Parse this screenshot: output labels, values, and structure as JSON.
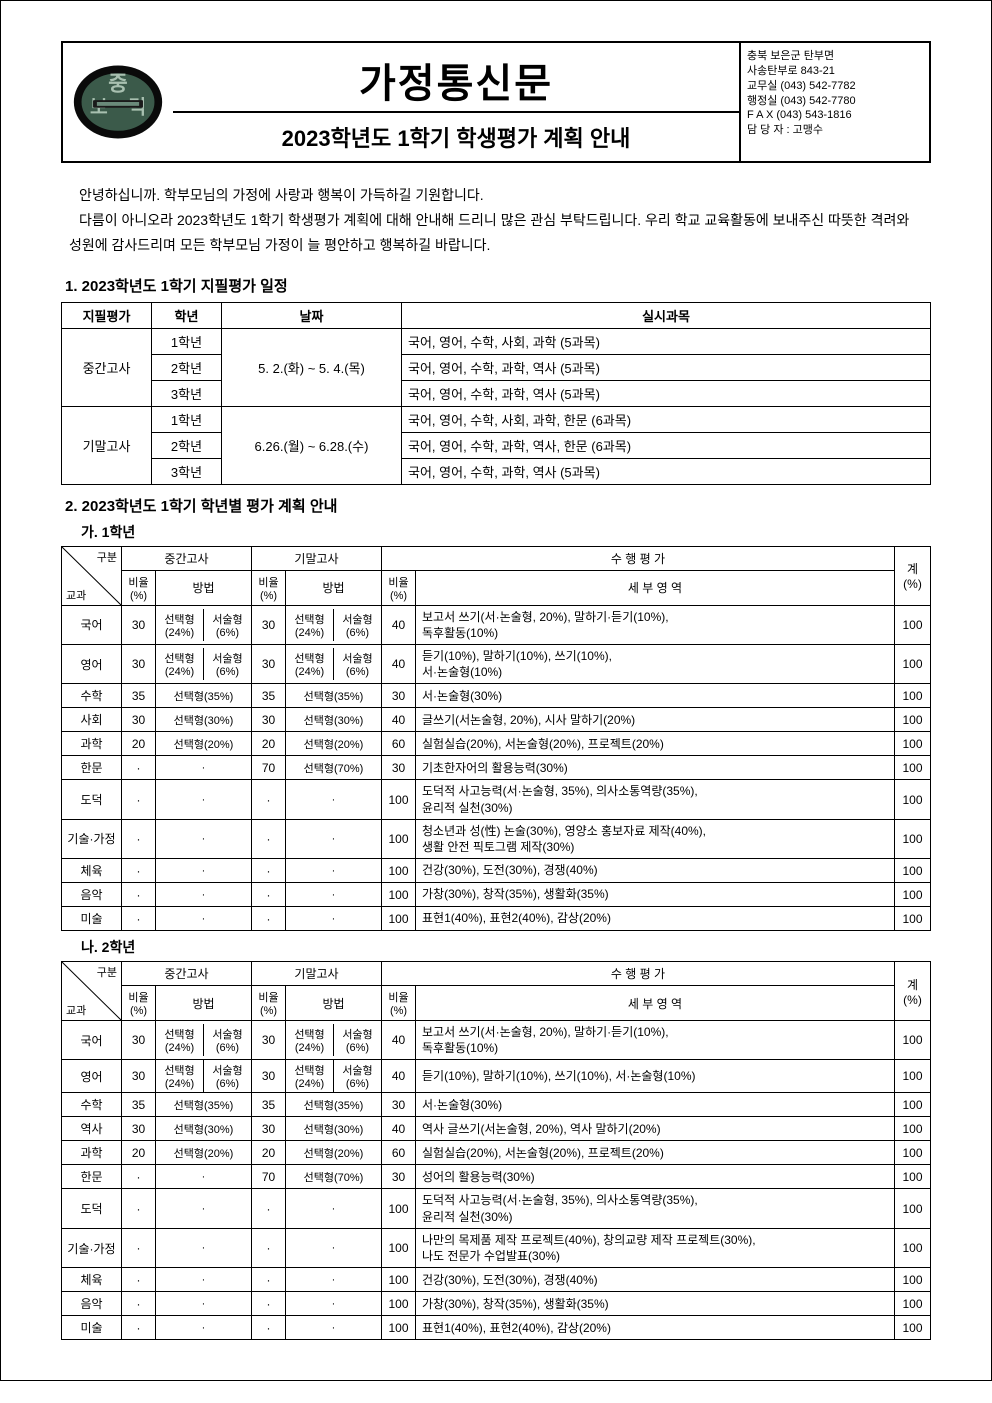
{
  "header": {
    "big_title": "가정통신문",
    "subtitle": "2023학년도 1학기 학생평가 계획 안내",
    "contact_lines": [
      "충북 보은군 탄부면",
      "사송탄부로 843-21",
      "교무실 (043) 542-7782",
      "행정실 (043) 542-7780",
      "F A X (043) 543-1816",
      "담 당 자 : 고맹수"
    ]
  },
  "intro": {
    "l1": "안녕하십니까. 학부모님의 가정에 사랑과 행복이 가득하길 기원합니다.",
    "l2": "다름이 아니오라 2023학년도 1학기 학생평가 계획에 대해 안내해 드리니 많은 관심 부탁드립니다. 우리 학교 교육활동에 보내주신 따뜻한 격려와 성원에 감사드리며 모든 학부모님 가정이 늘 평안하고 행복하길 바랍니다."
  },
  "sec1": {
    "title": "1. 2023학년도 1학기 지필평가 일정",
    "headers": {
      "c1": "지필평가",
      "c2": "학년",
      "c3": "날짜",
      "c4": "실시과목"
    },
    "mid_label": "중간고사",
    "mid_date": "5. 2.(화) ~ 5. 4.(목)",
    "final_label": "기말고사",
    "final_date": "6.26.(월) ~ 6.28.(수)",
    "rows_mid": [
      {
        "g": "1학년",
        "s": "국어, 영어, 수학, 사회, 과학 (5과목)"
      },
      {
        "g": "2학년",
        "s": "국어, 영어, 수학, 과학, 역사 (5과목)"
      },
      {
        "g": "3학년",
        "s": "국어, 영어, 수학, 과학, 역사 (5과목)"
      }
    ],
    "rows_final": [
      {
        "g": "1학년",
        "s": "국어, 영어, 수학, 사회, 과학, 한문 (6과목)"
      },
      {
        "g": "2학년",
        "s": "국어, 영어, 수학, 과학, 역사, 한문 (6과목)"
      },
      {
        "g": "3학년",
        "s": "국어, 영어, 수학, 과학, 역사 (5과목)"
      }
    ]
  },
  "sec2": {
    "title": "2. 2023학년도 1학기 학년별 평가 계획 안내",
    "g1_title": "가. 1학년",
    "g2_title": "나. 2학년",
    "col": {
      "gubun": "구분",
      "subject": "교과",
      "mid": "중간고사",
      "final": "기말고사",
      "perf": "수 행 평 가",
      "total": "계",
      "total_pct": "(%)",
      "ratio": "비율",
      "pct": "(%)",
      "method": "방법",
      "detail": "세 부 영 역",
      "sel": "선택형",
      "seo": "서술형",
      "p24": "(24%)",
      "p6": "(6%)"
    },
    "grade1": [
      {
        "subj": "국어",
        "mr": 30,
        "mm_split": true,
        "fr": 30,
        "fm_split": true,
        "pr": 40,
        "pd": "보고서 쓰기(서·논술형, 20%), 말하기·듣기(10%),\n독후활동(10%)",
        "t": 100
      },
      {
        "subj": "영어",
        "mr": 30,
        "mm_split": true,
        "fr": 30,
        "fm_split": true,
        "pr": 40,
        "pd": "듣기(10%), 말하기(10%), 쓰기(10%),\n서·논술형(10%)",
        "t": 100
      },
      {
        "subj": "수학",
        "mr": 35,
        "mm": "선택형(35%)",
        "fr": 35,
        "fm": "선택형(35%)",
        "pr": 30,
        "pd": "서·논술형(30%)",
        "t": 100
      },
      {
        "subj": "사회",
        "mr": 30,
        "mm": "선택형(30%)",
        "fr": 30,
        "fm": "선택형(30%)",
        "pr": 40,
        "pd": "글쓰기(서논술형, 20%), 시사 말하기(20%)",
        "t": 100
      },
      {
        "subj": "과학",
        "mr": 20,
        "mm": "선택형(20%)",
        "fr": 20,
        "fm": "선택형(20%)",
        "pr": 60,
        "pd": "실험실습(20%), 서논술형(20%), 프로젝트(20%)",
        "t": 100
      },
      {
        "subj": "한문",
        "mr": "·",
        "mm": "·",
        "fr": 70,
        "fm": "선택형(70%)",
        "pr": 30,
        "pd": "기초한자어의 활용능력(30%)",
        "t": 100
      },
      {
        "subj": "도덕",
        "mr": "·",
        "mm": "·",
        "fr": "·",
        "fm": "·",
        "pr": 100,
        "pd": "도덕적 사고능력(서·논술형, 35%), 의사소통역량(35%),\n윤리적 실천(30%)",
        "t": 100
      },
      {
        "subj": "기술·가정",
        "mr": "·",
        "mm": "·",
        "fr": "·",
        "fm": "·",
        "pr": 100,
        "pd": "청소년과 성(性) 논술(30%), 영양소 홍보자료 제작(40%),\n생활 안전 픽토그램 제작(30%)",
        "t": 100
      },
      {
        "subj": "체육",
        "mr": "·",
        "mm": "·",
        "fr": "·",
        "fm": "·",
        "pr": 100,
        "pd": "건강(30%), 도전(30%), 경쟁(40%)",
        "t": 100
      },
      {
        "subj": "음악",
        "mr": "·",
        "mm": "·",
        "fr": "·",
        "fm": "·",
        "pr": 100,
        "pd": "가창(30%), 창작(35%), 생활화(35%)",
        "t": 100
      },
      {
        "subj": "미술",
        "mr": "·",
        "mm": "·",
        "fr": "·",
        "fm": "·",
        "pr": 100,
        "pd": "표현1(40%), 표현2(40%), 감상(20%)",
        "t": 100
      }
    ],
    "grade2": [
      {
        "subj": "국어",
        "mr": 30,
        "mm_split": true,
        "fr": 30,
        "fm_split": true,
        "pr": 40,
        "pd": "보고서 쓰기(서·논술형, 20%), 말하기·듣기(10%),\n독후활동(10%)",
        "t": 100
      },
      {
        "subj": "영어",
        "mr": 30,
        "mm_split": true,
        "fr": 30,
        "fm_split": true,
        "pr": 40,
        "pd": "듣기(10%), 말하기(10%), 쓰기(10%), 서·논술형(10%)",
        "t": 100
      },
      {
        "subj": "수학",
        "mr": 35,
        "mm": "선택형(35%)",
        "fr": 35,
        "fm": "선택형(35%)",
        "pr": 30,
        "pd": "서·논술형(30%)",
        "t": 100
      },
      {
        "subj": "역사",
        "mr": 30,
        "mm": "선택형(30%)",
        "fr": 30,
        "fm": "선택형(30%)",
        "pr": 40,
        "pd": "역사 글쓰기(서논술형, 20%), 역사 말하기(20%)",
        "t": 100
      },
      {
        "subj": "과학",
        "mr": 20,
        "mm": "선택형(20%)",
        "fr": 20,
        "fm": "선택형(20%)",
        "pr": 60,
        "pd": "실험실습(20%), 서논술형(20%), 프로젝트(20%)",
        "t": 100
      },
      {
        "subj": "한문",
        "mr": "·",
        "mm": "·",
        "fr": 70,
        "fm": "선택형(70%)",
        "pr": 30,
        "pd": "성어의 활용능력(30%)",
        "t": 100
      },
      {
        "subj": "도덕",
        "mr": "·",
        "mm": "·",
        "fr": "·",
        "fm": "·",
        "pr": 100,
        "pd": "도덕적 사고능력(서·논술형, 35%), 의사소통역량(35%),\n윤리적 실천(30%)",
        "t": 100
      },
      {
        "subj": "기술·가정",
        "mr": "·",
        "mm": "·",
        "fr": "·",
        "fm": "·",
        "pr": 100,
        "pd": "나만의 목제품 제작 프로젝트(40%), 창의교량 제작 프로젝트(30%),\n나도 전문가 수업발표(30%)",
        "t": 100
      },
      {
        "subj": "체육",
        "mr": "·",
        "mm": "·",
        "fr": "·",
        "fm": "·",
        "pr": 100,
        "pd": "건강(30%), 도전(30%), 경쟁(40%)",
        "t": 100
      },
      {
        "subj": "음악",
        "mr": "·",
        "mm": "·",
        "fr": "·",
        "fm": "·",
        "pr": 100,
        "pd": "가창(30%), 창작(35%), 생활화(35%)",
        "t": 100
      },
      {
        "subj": "미술",
        "mr": "·",
        "mm": "·",
        "fr": "·",
        "fm": "·",
        "pr": 100,
        "pd": "표현1(40%), 표현2(40%), 감상(20%)",
        "t": 100
      }
    ]
  }
}
